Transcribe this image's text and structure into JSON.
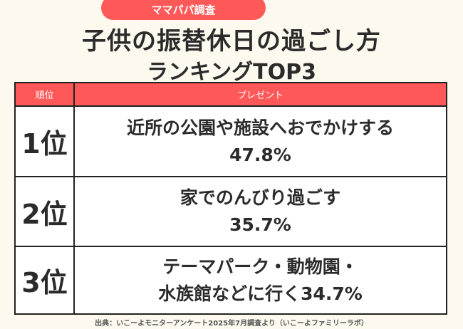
{
  "badge": "ママパパ調査",
  "title": {
    "line1": "子供の振替休日の過ごし方",
    "line2": "ランキングTOP3"
  },
  "table": {
    "headers": [
      "順位",
      "プレゼント"
    ],
    "rows": [
      {
        "rank": "1位",
        "line1": "近所の公園や施設へおでかけする",
        "line2": "47.8%"
      },
      {
        "rank": "2位",
        "line1": "家でのんびり過ごす",
        "line2": "35.7%"
      },
      {
        "rank": "3位",
        "line1": "テーマパーク・動物園・",
        "line2": "水族館などに行く34.7%"
      }
    ]
  },
  "source": "出典：いこーよモニターアンケート2025年7月調査より（いこーよファミリーラボ）",
  "colors": {
    "accent": "#ff5858",
    "background": "#fdf9ef"
  }
}
